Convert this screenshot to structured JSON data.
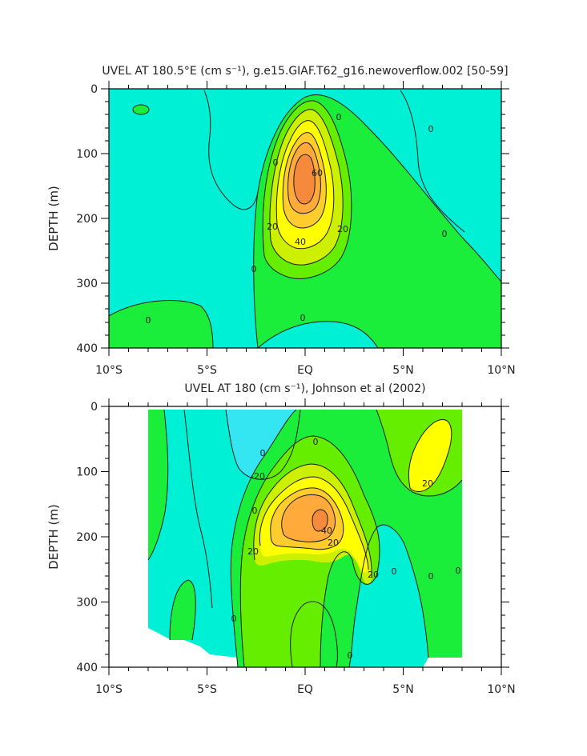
{
  "chart_data": [
    {
      "type": "contour",
      "title": "UVEL AT 180.5°E (cm s⁻¹), g.e15.GIAF.T62_g16.newoverflow.002 [50-59]",
      "ylabel": "DEPTH (m)",
      "xlim": [
        -10,
        10
      ],
      "ylim": [
        0,
        400
      ],
      "y_reversed": true,
      "xticks": [
        "10°S",
        "5°S",
        "EQ",
        "5°N",
        "10°N"
      ],
      "yticks": [
        "0",
        "100",
        "200",
        "300",
        "400"
      ],
      "contour_levels": [
        0,
        10,
        20,
        30,
        40,
        50,
        60,
        70
      ],
      "contour_labels": [
        "0",
        "0",
        "0",
        "0",
        "0",
        "0",
        "0",
        "20",
        "20",
        "40",
        "60"
      ],
      "max_core": {
        "lat": 0,
        "depth": 170,
        "value": 70
      }
    },
    {
      "type": "contour",
      "title": "UVEL AT 180 (cm s⁻¹), Johnson et al (2002)",
      "ylabel": "DEPTH (m)",
      "xlim": [
        -10,
        10
      ],
      "ylim": [
        0,
        400
      ],
      "y_reversed": true,
      "data_range_lat": [
        -8,
        8
      ],
      "xticks": [
        "10°S",
        "5°S",
        "EQ",
        "5°N",
        "10°N"
      ],
      "yticks": [
        "0",
        "100",
        "200",
        "300",
        "400"
      ],
      "contour_levels": [
        -20,
        -10,
        0,
        10,
        20,
        30,
        40,
        50,
        60
      ],
      "contour_labels": [
        "-20",
        "0",
        "0",
        "0",
        "0",
        "0",
        "0",
        "0",
        "0",
        "20",
        "20",
        "20",
        "20",
        "40"
      ],
      "max_core": {
        "lat": 0.5,
        "depth": 175,
        "value": 60
      }
    }
  ],
  "colors": {
    "neg_blue": "#33e6f2",
    "cyan": "#00f0d6",
    "green_light": "#1aee3a",
    "green": "#66ee00",
    "yellow_green": "#ccf000",
    "yellow": "#ffff00",
    "orange_light": "#ffcc2e",
    "orange": "#ffaa3a",
    "orange_dark": "#f58a3c"
  }
}
